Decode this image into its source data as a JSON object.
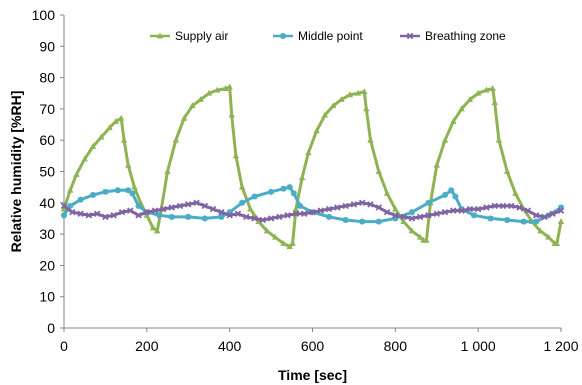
{
  "chart_data": {
    "type": "line",
    "xlabel": "Time [sec]",
    "ylabel": "Relative humidity [%RH]",
    "xlim": [
      0,
      1200
    ],
    "ylim": [
      0,
      100
    ],
    "x_ticks": [
      0,
      200,
      400,
      600,
      800,
      1000,
      1200
    ],
    "x_tick_labels": [
      "0",
      "200",
      "400",
      "600",
      "800",
      "1 000",
      "1 200"
    ],
    "y_ticks": [
      0,
      10,
      20,
      30,
      40,
      50,
      60,
      70,
      80,
      90,
      100
    ],
    "y_tick_labels": [
      "0",
      "10",
      "20",
      "30",
      "40",
      "50",
      "60",
      "70",
      "80",
      "90",
      "100"
    ],
    "grid": false,
    "legend_position": "top",
    "series": [
      {
        "name": "Supply air",
        "color": "#8db352",
        "marker": "triangle",
        "x": [
          0,
          15,
          30,
          50,
          70,
          90,
          110,
          125,
          138,
          145,
          155,
          170,
          185,
          200,
          215,
          225,
          235,
          250,
          270,
          290,
          310,
          330,
          350,
          370,
          390,
          400,
          405,
          415,
          430,
          450,
          470,
          490,
          510,
          530,
          545,
          552,
          560,
          575,
          590,
          610,
          630,
          650,
          670,
          690,
          710,
          725,
          730,
          740,
          760,
          780,
          800,
          820,
          840,
          860,
          868,
          875,
          885,
          900,
          920,
          940,
          960,
          980,
          1000,
          1020,
          1035,
          1040,
          1050,
          1070,
          1090,
          1110,
          1130,
          1150,
          1170,
          1185,
          1190,
          1200
        ],
        "y": [
          38,
          44,
          49,
          54,
          58,
          61,
          64,
          66,
          67,
          60,
          52,
          45,
          40,
          36,
          32,
          31,
          38,
          50,
          60,
          67,
          71,
          73,
          75,
          76,
          76.5,
          77,
          68,
          55,
          45,
          38,
          34,
          31,
          29,
          27,
          26,
          27,
          38,
          48,
          56,
          63,
          68,
          71,
          73,
          74.5,
          75,
          75.5,
          70,
          60,
          50,
          43,
          38,
          34,
          31,
          29,
          28,
          28,
          40,
          52,
          60,
          66,
          70,
          73,
          75,
          76,
          76.5,
          72,
          60,
          50,
          43,
          38,
          34,
          31,
          29,
          27,
          27,
          34
        ]
      },
      {
        "name": "Middle point",
        "color": "#4bacc6",
        "marker": "asterisk",
        "x": [
          0,
          15,
          40,
          70,
          100,
          130,
          155,
          165,
          180,
          200,
          230,
          260,
          300,
          340,
          380,
          400,
          430,
          460,
          500,
          530,
          545,
          555,
          570,
          600,
          640,
          680,
          720,
          760,
          800,
          840,
          880,
          920,
          935,
          945,
          960,
          990,
          1030,
          1070,
          1110,
          1140,
          1170,
          1200
        ],
        "y": [
          36,
          39,
          41,
          42.5,
          43.5,
          44,
          44,
          43,
          39,
          37,
          36,
          35.5,
          35.5,
          35,
          35.5,
          37,
          40,
          42,
          43.5,
          44.5,
          45,
          43,
          39,
          37,
          35.5,
          34.5,
          34,
          34,
          35,
          37,
          40,
          42.5,
          44,
          42,
          38,
          36,
          35,
          34.5,
          34,
          34,
          36,
          38.5
        ]
      },
      {
        "name": "Breathing zone",
        "color": "#8064a2",
        "marker": "x",
        "x": [
          0,
          20,
          40,
          60,
          80,
          100,
          120,
          140,
          160,
          180,
          200,
          220,
          240,
          260,
          280,
          300,
          320,
          340,
          360,
          380,
          400,
          420,
          440,
          460,
          480,
          500,
          520,
          540,
          560,
          580,
          600,
          620,
          640,
          660,
          680,
          700,
          720,
          740,
          760,
          780,
          800,
          820,
          840,
          860,
          880,
          900,
          920,
          940,
          960,
          980,
          1000,
          1020,
          1040,
          1060,
          1080,
          1100,
          1120,
          1140,
          1160,
          1180,
          1200
        ],
        "y": [
          39,
          37,
          36.5,
          36,
          36.5,
          35.5,
          36,
          37,
          37.5,
          36,
          37,
          37.5,
          38,
          38.5,
          39,
          39.5,
          40,
          39,
          38,
          37,
          36,
          36.5,
          35.5,
          35,
          34.5,
          35,
          35.5,
          36,
          36.5,
          36.5,
          37,
          37.5,
          38,
          38.5,
          39,
          39.5,
          40,
          39.5,
          38.5,
          37,
          36,
          35.5,
          35,
          35.5,
          36,
          36.5,
          37,
          37.5,
          37.5,
          38,
          38,
          38.5,
          39,
          39,
          39,
          38.5,
          37.5,
          36,
          35.5,
          36.5,
          37.5
        ]
      }
    ]
  }
}
